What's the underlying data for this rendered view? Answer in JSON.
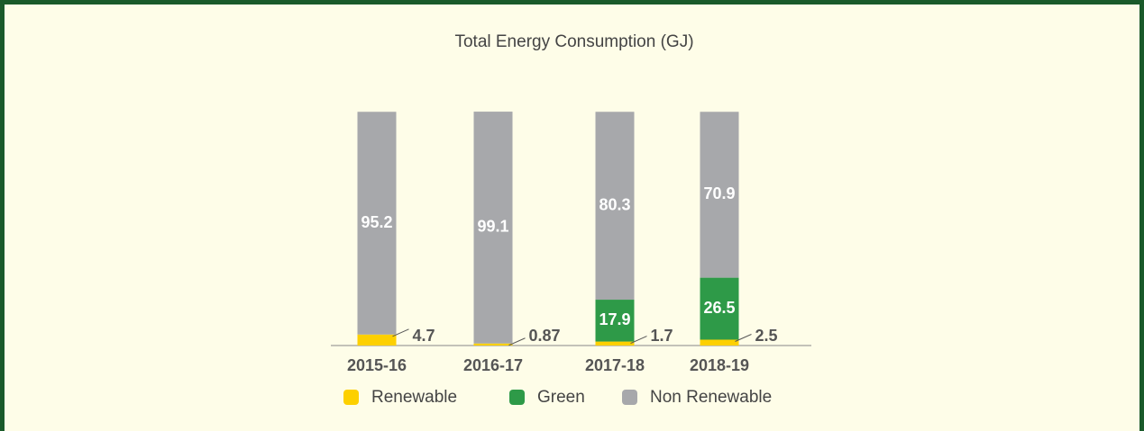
{
  "chart_data": {
    "type": "stacked_bar",
    "title": "Total Energy Consumption (GJ)",
    "categories": [
      "2015-16",
      "2016-17",
      "2017-18",
      "2018-19"
    ],
    "series": [
      {
        "name": "Renewable",
        "color": "#fdd000",
        "values": [
          4.7,
          0.87,
          1.7,
          2.5
        ]
      },
      {
        "name": "Green",
        "color": "#2e9a48",
        "values": [
          null,
          null,
          17.9,
          26.5
        ]
      },
      {
        "name": "Non Renewable",
        "color": "#a7a8ab",
        "values": [
          95.2,
          99.1,
          80.3,
          70.9
        ]
      }
    ],
    "legend": "bottom"
  }
}
